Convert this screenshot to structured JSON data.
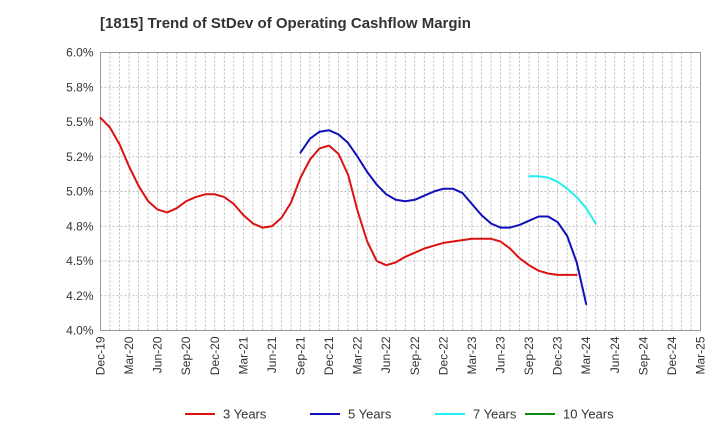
{
  "chart_data": {
    "type": "line",
    "title": "[1815]  Trend of StDev of Operating Cashflow Margin",
    "xlabel": "",
    "ylabel": "",
    "x_ticks": [
      "Dec-19",
      "Mar-20",
      "Jun-20",
      "Sep-20",
      "Dec-20",
      "Mar-21",
      "Jun-21",
      "Sep-21",
      "Dec-21",
      "Mar-22",
      "Jun-22",
      "Sep-22",
      "Dec-22",
      "Mar-23",
      "Jun-23",
      "Sep-23",
      "Dec-23",
      "Mar-24",
      "Jun-24",
      "Sep-24",
      "Dec-24",
      "Mar-25"
    ],
    "y_ticks": [
      {
        "value": 4.0,
        "label": "4.0%"
      },
      {
        "value": 4.25,
        "label": "4.2%"
      },
      {
        "value": 4.5,
        "label": "4.5%"
      },
      {
        "value": 4.75,
        "label": "4.8%"
      },
      {
        "value": 5.0,
        "label": "5.0%"
      },
      {
        "value": 5.25,
        "label": "5.2%"
      },
      {
        "value": 5.5,
        "label": "5.5%"
      },
      {
        "value": 5.75,
        "label": "5.8%"
      },
      {
        "value": 6.0,
        "label": "6.0%"
      }
    ],
    "ylim": [
      4.0,
      6.0
    ],
    "grid": true,
    "legend_position": "bottom",
    "series": [
      {
        "name": "3 Years",
        "color": "#dd1111",
        "start": "Dec-19",
        "values": [
          5.53,
          5.46,
          5.34,
          5.18,
          5.04,
          4.93,
          4.87,
          4.85,
          4.88,
          4.93,
          4.96,
          4.98,
          4.98,
          4.96,
          4.91,
          4.83,
          4.77,
          4.74,
          4.75,
          4.81,
          4.92,
          5.1,
          5.23,
          5.31,
          5.33,
          5.27,
          5.12,
          4.86,
          4.64,
          4.5,
          4.47,
          4.49,
          4.53,
          4.56,
          4.59,
          4.61,
          4.63,
          4.64,
          4.65,
          4.66,
          4.66,
          4.66,
          4.64,
          4.59,
          4.52,
          4.47,
          4.43,
          4.41,
          4.4,
          4.4,
          4.4
        ]
      },
      {
        "name": "5 Years",
        "color": "#1111bb",
        "start": "Sep-21",
        "values": [
          5.28,
          5.38,
          5.43,
          5.44,
          5.41,
          5.35,
          5.25,
          5.14,
          5.05,
          4.98,
          4.94,
          4.93,
          4.94,
          4.97,
          5.0,
          5.02,
          5.02,
          4.99,
          4.91,
          4.83,
          4.77,
          4.74,
          4.74,
          4.76,
          4.79,
          4.82,
          4.82,
          4.78,
          4.68,
          4.49,
          4.19
        ]
      },
      {
        "name": "7 Years",
        "color": "#22eeee",
        "start": "Sep-23",
        "values": [
          5.11,
          5.11,
          5.1,
          5.07,
          5.02,
          4.96,
          4.88,
          4.77
        ]
      },
      {
        "name": "10 Years",
        "color": "#118811",
        "start": "Dec-19",
        "values": []
      }
    ]
  }
}
